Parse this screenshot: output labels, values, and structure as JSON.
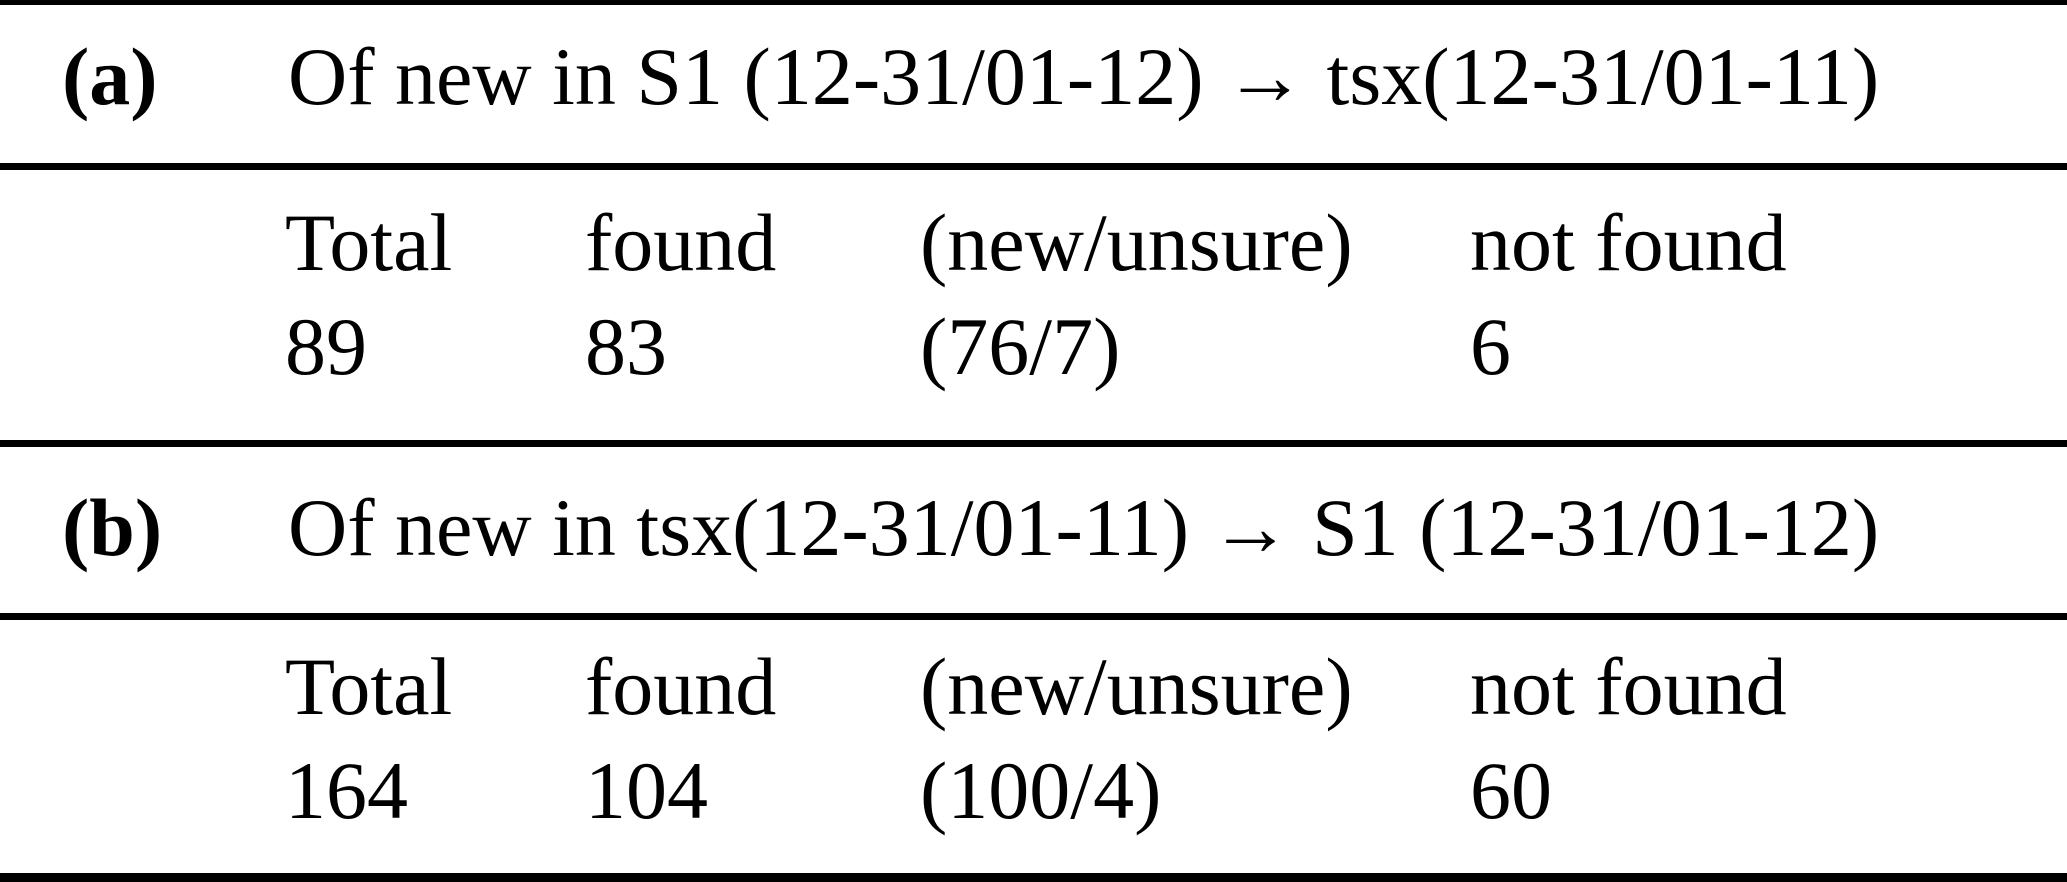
{
  "colors": {
    "text": "#000000",
    "background": "#ffffff",
    "rule": "#000000"
  },
  "table": {
    "sections": [
      {
        "label": "(a)",
        "title": "Of new in S1 (12-31/01-12) → tsx(12-31/01-11)",
        "columns": [
          "Total",
          "found",
          "(new/unsure)",
          "not found"
        ],
        "values": [
          "89",
          "83",
          "(76/7)",
          "6"
        ]
      },
      {
        "label": "(b)",
        "title": "Of new in tsx(12-31/01-11) → S1 (12-31/01-12)",
        "columns": [
          "Total",
          "found",
          "(new/unsure)",
          "not found"
        ],
        "values": [
          "164",
          "104",
          "(100/4)",
          "60"
        ]
      }
    ]
  }
}
